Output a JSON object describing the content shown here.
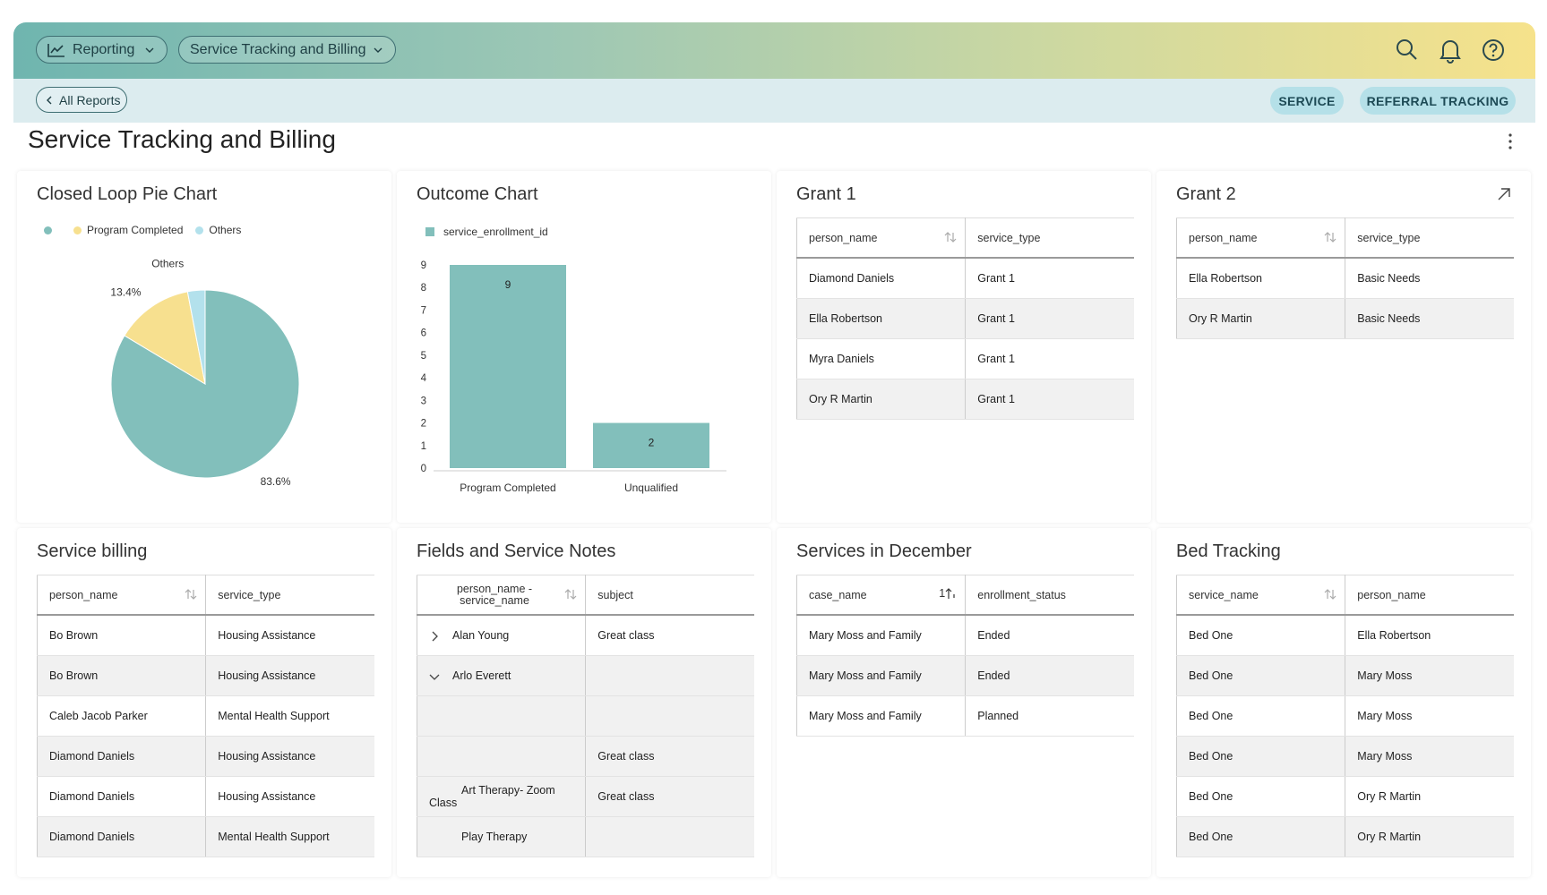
{
  "header": {
    "reporting": "Reporting",
    "report": "Service Tracking and Billing"
  },
  "nav": {
    "back": "All Reports",
    "tabs": [
      "SERVICE",
      "REFERRAL TRACKING"
    ]
  },
  "page_title": "Service Tracking and Billing",
  "widgets": [
    {
      "title": "Closed Loop Pie Chart",
      "chart_data": {
        "type": "pie",
        "categories": [
          null,
          "Program Completed",
          "Others"
        ],
        "values": [
          83.6,
          13.4,
          3.0
        ],
        "value_labels": [
          "83.6%",
          "13.4%",
          null
        ],
        "colors": [
          "#82bfbb",
          "#f7e08f",
          "#b3e1ec"
        ]
      }
    },
    {
      "title": "Outcome Chart",
      "chart_data": {
        "type": "bar",
        "categories": [
          "Program Completed",
          "Unqualified"
        ],
        "series": [
          {
            "name": "service_enrollment_id",
            "color": "#82bfbb",
            "values": [
              9,
              2
            ]
          }
        ],
        "ylim": [
          0,
          9
        ],
        "yticks": [
          0,
          1,
          2,
          3,
          4,
          5,
          6,
          7,
          8,
          9
        ],
        "grid": false
      }
    },
    {
      "title": "Grant 1",
      "table": {
        "columns": [
          "person_name",
          "service_type"
        ],
        "rows": [
          [
            "Diamond Daniels",
            "Grant 1"
          ],
          [
            "Ella Robertson",
            "Grant 1"
          ],
          [
            "Myra Daniels",
            "Grant 1"
          ],
          [
            "Ory R Martin",
            "Grant 1"
          ]
        ]
      }
    },
    {
      "title": "Grant 2",
      "table": {
        "columns": [
          "person_name",
          "service_type"
        ],
        "rows": [
          [
            "Ella Robertson",
            "Basic Needs"
          ],
          [
            "Ory R Martin",
            "Basic Needs"
          ]
        ]
      }
    },
    {
      "title": "Service billing",
      "table": {
        "columns": [
          "person_name",
          "service_type"
        ],
        "rows": [
          [
            "Bo Brown",
            "Housing Assistance"
          ],
          [
            "Bo Brown",
            "Housing Assistance"
          ],
          [
            "Caleb Jacob Parker",
            "Mental Health Support"
          ],
          [
            "Diamond Daniels",
            "Housing Assistance"
          ],
          [
            "Diamond Daniels",
            "Housing Assistance"
          ],
          [
            "Diamond Daniels",
            "Mental Health Support"
          ]
        ]
      }
    },
    {
      "title": "Fields and Service Notes",
      "table": {
        "columns": [
          "person_name - service_name",
          "subject"
        ],
        "rows": [
          [
            "Alan Young",
            "Great class"
          ],
          [
            "Arlo Everett",
            null
          ],
          [
            null,
            null
          ],
          [
            null,
            "Great class"
          ],
          [
            "Art Therapy- Zoom Class",
            "Great class"
          ],
          [
            "Play Therapy",
            null
          ]
        ]
      }
    },
    {
      "title": "Services in December",
      "table": {
        "columns": [
          "case_name",
          "enrollment_status"
        ],
        "sort_rank": 1,
        "rows": [
          [
            "Mary Moss and Family",
            "Ended"
          ],
          [
            "Mary Moss and Family",
            "Ended"
          ],
          [
            "Mary Moss and Family",
            "Planned"
          ]
        ]
      }
    },
    {
      "title": "Bed Tracking",
      "table": {
        "columns": [
          "service_name",
          "person_name"
        ],
        "rows": [
          [
            "Bed One",
            "Ella Robertson"
          ],
          [
            "Bed One",
            "Mary Moss"
          ],
          [
            "Bed One",
            "Mary Moss"
          ],
          [
            "Bed One",
            "Mary Moss"
          ],
          [
            "Bed One",
            "Ory R Martin"
          ],
          [
            "Bed One",
            "Ory R Martin"
          ]
        ]
      }
    }
  ]
}
